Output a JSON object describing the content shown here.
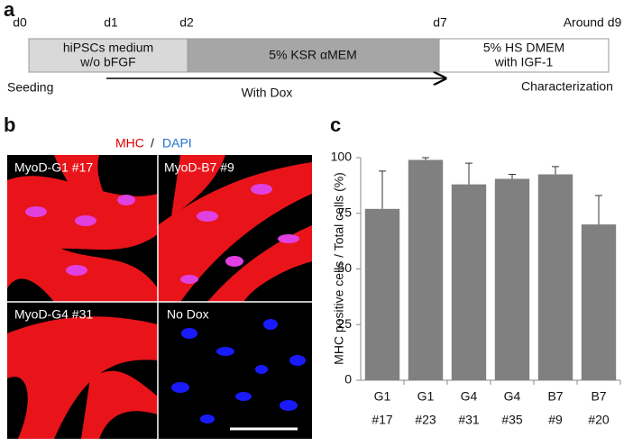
{
  "panel_a": {
    "label": "a",
    "days": [
      "d0",
      "d1",
      "d2",
      "d7",
      "Around d9"
    ],
    "stages": [
      {
        "lines": [
          "hiPSCs medium",
          "w/o bFGF"
        ]
      },
      {
        "lines": [
          "5% KSR αMEM"
        ]
      },
      {
        "lines": [
          "5% HS DMEM",
          "with IGF-1"
        ]
      }
    ],
    "start": "Seeding",
    "arrow": "With Dox",
    "end": "Characterization"
  },
  "panel_b": {
    "label": "b",
    "stain_1": "MHC",
    "separator": "/",
    "stain_2": "DAPI",
    "images": [
      "MyoD-G1 #17",
      "MyoD-B7 #9",
      "MyoD-G4 #31",
      "No Dox"
    ]
  },
  "chart_data": {
    "type": "bar",
    "label": "c",
    "y_label": "MHC positive cells / Total cells (%)",
    "categories": [
      [
        "G1",
        "#17"
      ],
      [
        "G1",
        "#23"
      ],
      [
        "G4",
        "#31"
      ],
      [
        "G4",
        "#35"
      ],
      [
        "B7",
        "#9"
      ],
      [
        "B7",
        "#20"
      ]
    ],
    "values": [
      77,
      99,
      88,
      90.5,
      92.5,
      70
    ],
    "errors": [
      17,
      1,
      9.5,
      2,
      3.5,
      13
    ],
    "color": "#808080",
    "ylim": [
      0,
      100
    ],
    "yticks": [
      0,
      25,
      50,
      75,
      100
    ],
    "grid": false
  }
}
